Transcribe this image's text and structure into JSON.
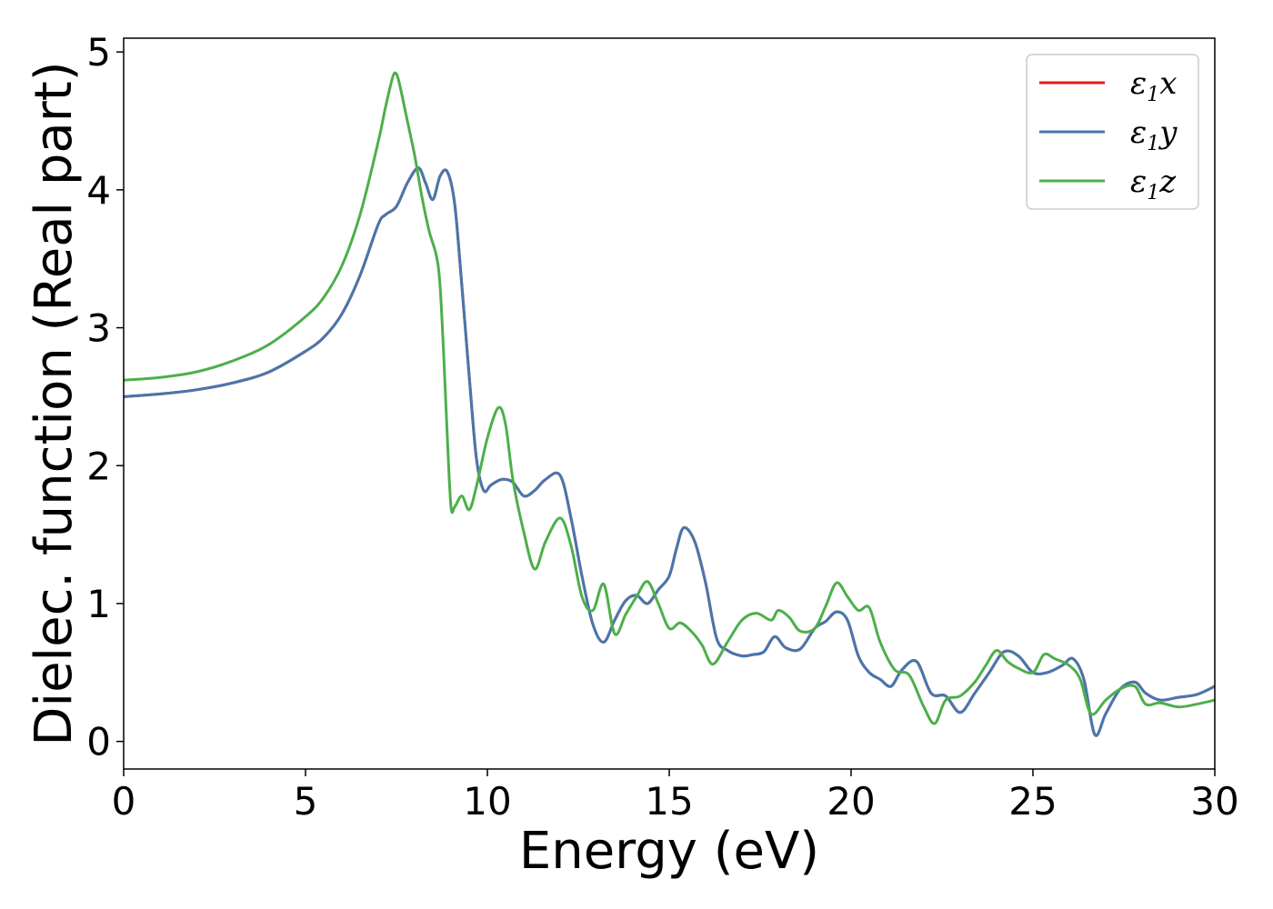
{
  "chart_data": {
    "type": "line",
    "title": "",
    "xlabel": "Energy (eV)",
    "ylabel": "Dielec. function (Real part)",
    "xlim": [
      0,
      30
    ],
    "ylim": [
      -0.2,
      5.1
    ],
    "xticks": [
      0,
      5,
      10,
      15,
      20,
      25,
      30
    ],
    "xtick_labels": [
      "0",
      "5",
      "10",
      "15",
      "20",
      "25",
      "30"
    ],
    "yticks": [
      0,
      1,
      2,
      3,
      4,
      5
    ],
    "ytick_labels": [
      "0",
      "1",
      "2",
      "3",
      "4",
      "5"
    ],
    "grid": false,
    "legend_position": "top-right",
    "series": [
      {
        "name": "ε1x",
        "legend_symbol": "ε",
        "legend_sub": "1",
        "legend_axis": "x",
        "color": "#e41a1c",
        "x": [
          0,
          1,
          2,
          3,
          4,
          5,
          5.5,
          6,
          6.5,
          7,
          7.2,
          7.5,
          7.8,
          8.1,
          8.3,
          8.5,
          8.7,
          8.9,
          9.1,
          9.3,
          9.5,
          9.7,
          9.9,
          10.1,
          10.4,
          10.7,
          11,
          11.3,
          11.6,
          12,
          12.3,
          12.6,
          12.9,
          13.2,
          13.5,
          13.8,
          14.1,
          14.4,
          14.7,
          15,
          15.2,
          15.4,
          15.7,
          16,
          16.3,
          16.6,
          17,
          17.3,
          17.6,
          17.9,
          18.2,
          18.6,
          19,
          19.3,
          19.6,
          19.9,
          20.2,
          20.5,
          20.8,
          21.1,
          21.4,
          21.8,
          22.2,
          22.6,
          23,
          23.4,
          23.8,
          24.2,
          24.6,
          25,
          25.4,
          25.8,
          26.1,
          26.4,
          26.7,
          27,
          27.4,
          27.8,
          28.1,
          28.5,
          29,
          29.5,
          30
        ],
        "y": [
          2.5,
          2.52,
          2.55,
          2.6,
          2.68,
          2.83,
          2.93,
          3.1,
          3.38,
          3.75,
          3.82,
          3.88,
          4.05,
          4.16,
          4.05,
          3.93,
          4.1,
          4.13,
          3.9,
          3.3,
          2.65,
          2.05,
          1.82,
          1.86,
          1.9,
          1.88,
          1.78,
          1.82,
          1.9,
          1.93,
          1.62,
          1.2,
          0.85,
          0.72,
          0.88,
          1.02,
          1.06,
          1.0,
          1.1,
          1.2,
          1.4,
          1.55,
          1.45,
          1.15,
          0.75,
          0.66,
          0.62,
          0.63,
          0.65,
          0.76,
          0.68,
          0.67,
          0.82,
          0.87,
          0.94,
          0.88,
          0.62,
          0.5,
          0.45,
          0.4,
          0.52,
          0.58,
          0.35,
          0.33,
          0.21,
          0.35,
          0.5,
          0.65,
          0.62,
          0.5,
          0.5,
          0.55,
          0.6,
          0.45,
          0.05,
          0.2,
          0.38,
          0.43,
          0.35,
          0.3,
          0.32,
          0.34,
          0.4
        ]
      },
      {
        "name": "ε1y",
        "legend_symbol": "ε",
        "legend_sub": "1",
        "legend_axis": "y",
        "color": "#4677ae",
        "x": [
          0,
          1,
          2,
          3,
          4,
          5,
          5.5,
          6,
          6.5,
          7,
          7.2,
          7.5,
          7.8,
          8.1,
          8.3,
          8.5,
          8.7,
          8.9,
          9.1,
          9.3,
          9.5,
          9.7,
          9.9,
          10.1,
          10.4,
          10.7,
          11,
          11.3,
          11.6,
          12,
          12.3,
          12.6,
          12.9,
          13.2,
          13.5,
          13.8,
          14.1,
          14.4,
          14.7,
          15,
          15.2,
          15.4,
          15.7,
          16,
          16.3,
          16.6,
          17,
          17.3,
          17.6,
          17.9,
          18.2,
          18.6,
          19,
          19.3,
          19.6,
          19.9,
          20.2,
          20.5,
          20.8,
          21.1,
          21.4,
          21.8,
          22.2,
          22.6,
          23,
          23.4,
          23.8,
          24.2,
          24.6,
          25,
          25.4,
          25.8,
          26.1,
          26.4,
          26.7,
          27,
          27.4,
          27.8,
          28.1,
          28.5,
          29,
          29.5,
          30
        ],
        "y": [
          2.5,
          2.52,
          2.55,
          2.6,
          2.68,
          2.83,
          2.93,
          3.1,
          3.38,
          3.75,
          3.82,
          3.88,
          4.05,
          4.16,
          4.05,
          3.93,
          4.1,
          4.13,
          3.9,
          3.3,
          2.65,
          2.05,
          1.82,
          1.86,
          1.9,
          1.88,
          1.78,
          1.82,
          1.9,
          1.93,
          1.62,
          1.2,
          0.85,
          0.72,
          0.88,
          1.02,
          1.06,
          1.0,
          1.1,
          1.2,
          1.4,
          1.55,
          1.45,
          1.15,
          0.75,
          0.66,
          0.62,
          0.63,
          0.65,
          0.76,
          0.68,
          0.67,
          0.82,
          0.87,
          0.94,
          0.88,
          0.62,
          0.5,
          0.45,
          0.4,
          0.52,
          0.58,
          0.35,
          0.33,
          0.21,
          0.35,
          0.5,
          0.65,
          0.62,
          0.5,
          0.5,
          0.55,
          0.6,
          0.45,
          0.05,
          0.2,
          0.38,
          0.43,
          0.35,
          0.3,
          0.32,
          0.34,
          0.4
        ]
      },
      {
        "name": "ε1z",
        "legend_symbol": "ε",
        "legend_sub": "1",
        "legend_axis": "z",
        "color": "#4daf4a",
        "x": [
          0,
          1,
          2,
          3,
          4,
          5,
          5.5,
          6,
          6.5,
          7,
          7.2,
          7.4,
          7.5,
          7.6,
          7.8,
          8,
          8.2,
          8.4,
          8.6,
          8.7,
          8.8,
          8.9,
          9.0,
          9.1,
          9.3,
          9.5,
          9.7,
          10,
          10.3,
          10.5,
          10.7,
          11,
          11.3,
          11.6,
          12,
          12.3,
          12.6,
          12.9,
          13.2,
          13.5,
          13.8,
          14.1,
          14.4,
          14.7,
          15,
          15.3,
          15.6,
          15.9,
          16.2,
          16.6,
          17,
          17.4,
          17.8,
          18.0,
          18.3,
          18.6,
          19,
          19.3,
          19.6,
          19.9,
          20.2,
          20.5,
          20.8,
          21.2,
          21.6,
          22,
          22.3,
          22.6,
          23,
          23.4,
          23.7,
          24,
          24.3,
          24.6,
          25,
          25.3,
          25.6,
          26,
          26.3,
          26.6,
          27,
          27.4,
          27.8,
          28.1,
          28.5,
          29,
          29.5,
          30
        ],
        "y": [
          2.62,
          2.64,
          2.68,
          2.76,
          2.88,
          3.08,
          3.22,
          3.45,
          3.82,
          4.35,
          4.6,
          4.82,
          4.84,
          4.75,
          4.5,
          4.25,
          3.95,
          3.7,
          3.52,
          3.3,
          2.8,
          2.2,
          1.7,
          1.7,
          1.78,
          1.68,
          1.85,
          2.2,
          2.42,
          2.3,
          1.9,
          1.52,
          1.25,
          1.45,
          1.62,
          1.42,
          1.05,
          0.95,
          1.14,
          0.78,
          0.92,
          1.05,
          1.16,
          1.0,
          0.82,
          0.86,
          0.8,
          0.7,
          0.56,
          0.72,
          0.88,
          0.93,
          0.88,
          0.95,
          0.9,
          0.8,
          0.82,
          0.98,
          1.15,
          1.05,
          0.95,
          0.97,
          0.72,
          0.52,
          0.48,
          0.25,
          0.13,
          0.3,
          0.33,
          0.43,
          0.55,
          0.66,
          0.58,
          0.53,
          0.5,
          0.63,
          0.6,
          0.55,
          0.45,
          0.2,
          0.3,
          0.38,
          0.4,
          0.27,
          0.28,
          0.25,
          0.27,
          0.3
        ]
      }
    ]
  }
}
